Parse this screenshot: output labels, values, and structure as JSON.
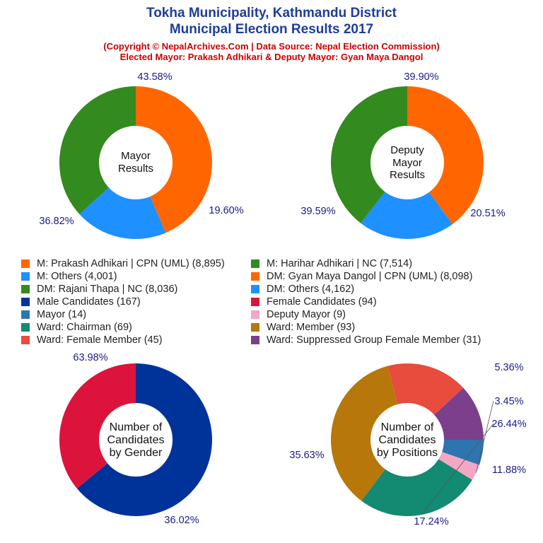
{
  "header": {
    "title1": "Tokha Municipality, Kathmandu District",
    "title2": "Municipal Election Results 2017",
    "subtitle1": "(Copyright © NepalArchives.Com | Data Source: Nepal Election Commission)",
    "subtitle2": "Elected Mayor: Prakash Adhikari & Deputy Mayor: Gyan Maya Dangol"
  },
  "legend": [
    {
      "label": "M: Prakash Adhikari | CPN (UML) (8,895)",
      "color": "#ff6600"
    },
    {
      "label": "M: Harihar Adhikari | NC (7,514)",
      "color": "#338a1e"
    },
    {
      "label": "M: Others (4,001)",
      "color": "#1e90ff"
    },
    {
      "label": "DM: Gyan Maya Dangol | CPN (UML) (8,098)",
      "color": "#ff6600"
    },
    {
      "label": "DM: Rajani Thapa | NC (8,036)",
      "color": "#338a1e"
    },
    {
      "label": "DM: Others (4,162)",
      "color": "#1e90ff"
    },
    {
      "label": "Male Candidates (167)",
      "color": "#003399"
    },
    {
      "label": "Female Candidates (94)",
      "color": "#dc143c"
    },
    {
      "label": "Mayor (14)",
      "color": "#2e75b0"
    },
    {
      "label": "Deputy Mayor (9)",
      "color": "#f4a7c3"
    },
    {
      "label": "Ward: Chairman (69)",
      "color": "#138a72"
    },
    {
      "label": "Ward: Member (93)",
      "color": "#b8770b"
    },
    {
      "label": "Ward: Female Member (45)",
      "color": "#e74c3c"
    },
    {
      "label": "Ward: Suppressed Group Female Member (31)",
      "color": "#7b3f8c"
    }
  ],
  "chart_data": [
    {
      "type": "pie",
      "title": "Mayor Results",
      "center_lines": [
        "Mayor",
        "Results"
      ],
      "slices": [
        {
          "name": "M: Prakash Adhikari | CPN (UML)",
          "value": 8895,
          "percent": 43.58,
          "label": "43.58%",
          "color": "#ff6600"
        },
        {
          "name": "M: Others",
          "value": 4001,
          "percent": 19.6,
          "label": "19.60%",
          "color": "#1e90ff"
        },
        {
          "name": "M: Harihar Adhikari | NC",
          "value": 7514,
          "percent": 36.82,
          "label": "36.82%",
          "color": "#338a1e"
        }
      ]
    },
    {
      "type": "pie",
      "title": "Deputy Mayor Results",
      "center_lines": [
        "Deputy",
        "Mayor",
        "Results"
      ],
      "slices": [
        {
          "name": "DM: Gyan Maya Dangol | CPN (UML)",
          "value": 8098,
          "percent": 39.9,
          "label": "39.90%",
          "color": "#ff6600"
        },
        {
          "name": "DM: Others",
          "value": 4162,
          "percent": 20.51,
          "label": "20.51%",
          "color": "#1e90ff"
        },
        {
          "name": "DM: Rajani Thapa | NC",
          "value": 8036,
          "percent": 39.59,
          "label": "39.59%",
          "color": "#338a1e"
        }
      ]
    },
    {
      "type": "pie",
      "title": "Number of Candidates by Gender",
      "center_lines": [
        "Number of",
        "Candidates",
        "by Gender"
      ],
      "slices": [
        {
          "name": "Male Candidates",
          "value": 167,
          "percent": 63.98,
          "label": "63.98%",
          "color": "#003399"
        },
        {
          "name": "Female Candidates",
          "value": 94,
          "percent": 36.02,
          "label": "36.02%",
          "color": "#dc143c"
        }
      ]
    },
    {
      "type": "pie",
      "title": "Number of Candidates by Positions",
      "center_lines": [
        "Number of",
        "Candidates",
        "by Positions"
      ],
      "slices": [
        {
          "name": "Mayor",
          "value": 14,
          "percent": 5.36,
          "label": "5.36%",
          "color": "#2e75b0"
        },
        {
          "name": "Deputy Mayor",
          "value": 9,
          "percent": 3.45,
          "label": "3.45%",
          "color": "#f4a7c3"
        },
        {
          "name": "Ward: Chairman",
          "value": 69,
          "percent": 26.44,
          "label": "26.44%",
          "color": "#138a72"
        },
        {
          "name": "Ward: Member",
          "value": 93,
          "percent": 35.63,
          "label": "35.63%",
          "color": "#b8770b"
        },
        {
          "name": "Ward: Female Member",
          "value": 45,
          "percent": 17.24,
          "label": "17.24%",
          "color": "#e74c3c"
        },
        {
          "name": "Ward: Suppressed Group Female Member",
          "value": 31,
          "percent": 11.88,
          "label": "11.88%",
          "color": "#7b3f8c"
        }
      ]
    }
  ]
}
